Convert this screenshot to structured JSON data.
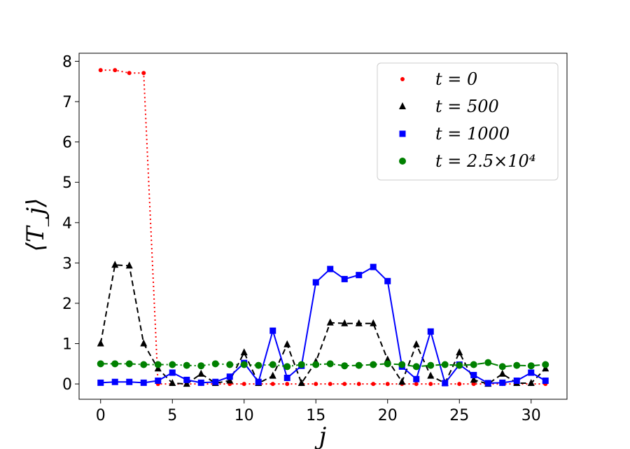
{
  "chart_data": {
    "type": "line",
    "xlabel": "j",
    "ylabel": "⟨T_j⟩",
    "xlim": [
      -1.5,
      32.5
    ],
    "ylim": [
      -0.38,
      8.2
    ],
    "xticks": [
      "0",
      "5",
      "10",
      "15",
      "20",
      "25",
      "30"
    ],
    "yticks": [
      "0",
      "1",
      "2",
      "3",
      "4",
      "5",
      "6",
      "7",
      "8"
    ],
    "grid": false,
    "legend_position": "top-right",
    "x": [
      0,
      1,
      2,
      3,
      4,
      5,
      6,
      7,
      8,
      9,
      10,
      11,
      12,
      13,
      14,
      15,
      16,
      17,
      18,
      19,
      20,
      21,
      22,
      23,
      24,
      25,
      26,
      27,
      28,
      29,
      30,
      31
    ],
    "series": [
      {
        "name": "t = 0",
        "color": "#ff0000",
        "marker": "circle-small",
        "linestyle": "dotted",
        "values": [
          7.78,
          7.78,
          7.71,
          7.71,
          0,
          0,
          0,
          0,
          0,
          0,
          0,
          0,
          0,
          0,
          0,
          0,
          0,
          0,
          0,
          0,
          0,
          0,
          0,
          0,
          0,
          0,
          0,
          0,
          0,
          0,
          0,
          0
        ]
      },
      {
        "name": "t = 500",
        "color": "#000000",
        "marker": "triangle",
        "linestyle": "dashed",
        "values": [
          1.0,
          2.95,
          2.93,
          1.0,
          0.38,
          0.02,
          0.0,
          0.25,
          0.02,
          0.08,
          0.78,
          0.02,
          0.2,
          0.98,
          0.02,
          0.55,
          1.52,
          1.5,
          1.5,
          1.5,
          0.6,
          0.05,
          0.98,
          0.2,
          0.02,
          0.78,
          0.1,
          0.0,
          0.25,
          0.02,
          0.02,
          0.38
        ]
      },
      {
        "name": "t = 1000",
        "color": "#0000ff",
        "marker": "square",
        "linestyle": "solid",
        "values": [
          0.03,
          0.05,
          0.05,
          0.03,
          0.08,
          0.28,
          0.1,
          0.03,
          0.05,
          0.18,
          0.52,
          0.05,
          1.32,
          0.15,
          0.45,
          2.52,
          2.85,
          2.6,
          2.7,
          2.9,
          2.55,
          0.43,
          0.12,
          1.3,
          0.02,
          0.48,
          0.22,
          0.02,
          0.03,
          0.08,
          0.28,
          0.08
        ]
      },
      {
        "name": "t = 2.5×10⁴",
        "color": "#008000",
        "marker": "circle",
        "linestyle": "dashdot",
        "values": [
          0.5,
          0.5,
          0.5,
          0.48,
          0.48,
          0.48,
          0.46,
          0.45,
          0.5,
          0.48,
          0.48,
          0.46,
          0.48,
          0.43,
          0.48,
          0.48,
          0.5,
          0.45,
          0.46,
          0.48,
          0.5,
          0.48,
          0.43,
          0.46,
          0.48,
          0.46,
          0.48,
          0.53,
          0.43,
          0.46,
          0.45,
          0.48
        ]
      }
    ]
  }
}
